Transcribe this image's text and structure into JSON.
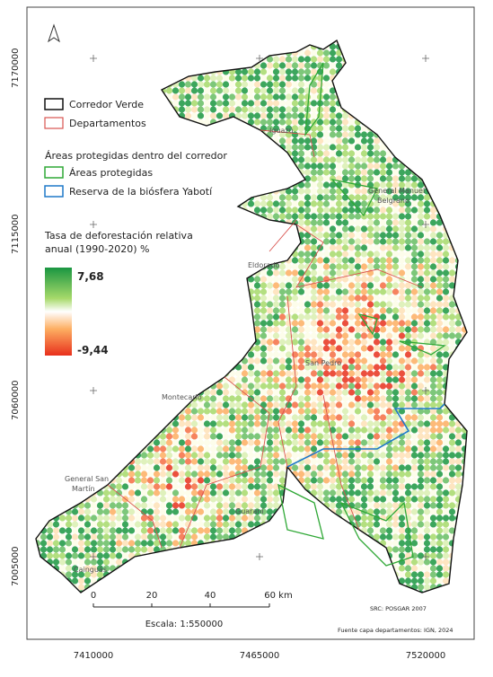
{
  "map": {
    "legend": {
      "corridor": "Corredor Verde",
      "departments": "Departamentos",
      "protected_heading": "Áreas protegidas dentro del corredor",
      "protected": "Áreas protegidas",
      "biosphere": "Reserva de la biósfera Yabotí",
      "rate_title_1": "Tasa de deforestación relativa",
      "rate_title_2": "anual (1990-2020) %",
      "rate_max": "7,68",
      "rate_min": "-9,44"
    },
    "departments": [
      "Iguazú",
      "General Manuel",
      "Belgrano",
      "Eldorado",
      "San Pedro",
      "Montecarlo",
      "General San",
      "Martín",
      "Guaraní",
      "Cainguás"
    ],
    "y_labels": [
      "7170000",
      "7115000",
      "7060000",
      "7005000"
    ],
    "x_labels": [
      "7410000",
      "7465000",
      "7520000"
    ],
    "scale_labels": [
      "0",
      "20",
      "40",
      "60 km"
    ],
    "scale_text": "Escala: 1:550000",
    "crs": "SRC: POSGAR 2007",
    "source": "Fuente capa departamentos: IGN, 2024"
  }
}
